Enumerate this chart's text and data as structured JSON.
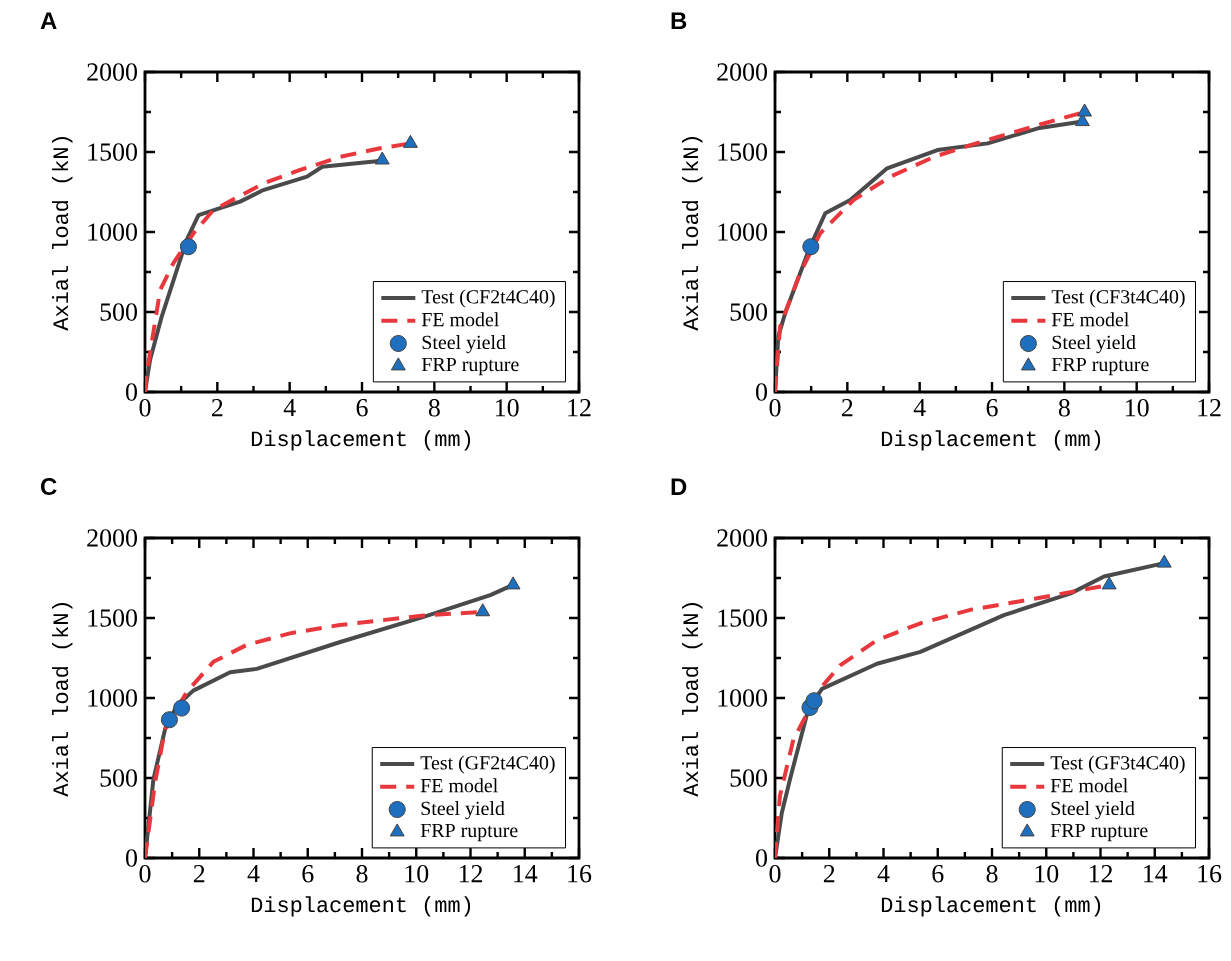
{
  "chart_data": [
    {
      "type": "line",
      "title": "A",
      "xlabel": "Displacement (mm)",
      "ylabel": "Axial load (kN)",
      "xlim": [
        0,
        12
      ],
      "ylim": [
        0,
        2000
      ],
      "xticks": [
        0,
        2,
        4,
        6,
        8,
        10,
        12
      ],
      "yticks": [
        0,
        500,
        1000,
        1500,
        2000
      ],
      "legend": "bottom right",
      "series": [
        {
          "name": "Test (CF2t4C40)",
          "type": "line",
          "color": "#4a4a4a",
          "line_style": "solid",
          "marker": "none",
          "x": [
            0,
            0.14,
            0.46,
            1.15,
            1.48,
            2.63,
            3.27,
            4.48,
            4.9,
            6.33,
            6.56
          ],
          "values": [
            0,
            200,
            470,
            950,
            1106,
            1190,
            1262,
            1346,
            1408,
            1440,
            1450
          ]
        },
        {
          "name": "FE model",
          "type": "line",
          "color": "#e8383d",
          "line_style": "dashed",
          "marker": "none",
          "x": [
            0,
            0.05,
            0.42,
            0.78,
            1.34,
            1.89,
            3.28,
            4.29,
            5.4,
            6.5,
            7.34
          ],
          "values": [
            0,
            118,
            637,
            804,
            992,
            1137,
            1304,
            1388,
            1470,
            1523,
            1554
          ]
        },
        {
          "name": "Steel yield",
          "type": "scatter",
          "color": "#1f6fbf",
          "marker": "circle",
          "x": [
            1.2
          ],
          "values": [
            908
          ]
        },
        {
          "name": "FRP rupture",
          "type": "scatter",
          "color": "#1f6fbf",
          "marker": "triangle",
          "x": [
            6.56,
            7.34
          ],
          "values": [
            1450,
            1554
          ]
        }
      ]
    },
    {
      "type": "line",
      "title": "B",
      "xlabel": "Displacement (mm)",
      "ylabel": "Axial load (kN)",
      "xlim": [
        0,
        12
      ],
      "ylim": [
        0,
        2000
      ],
      "xticks": [
        0,
        2,
        4,
        6,
        8,
        10,
        12
      ],
      "yticks": [
        0,
        500,
        1000,
        1500,
        2000
      ],
      "legend": "bottom right",
      "series": [
        {
          "name": "Test (CF3t4C40)",
          "type": "line",
          "color": "#4a4a4a",
          "line_style": "solid",
          "marker": "none",
          "x": [
            0,
            0.09,
            0.28,
            0.97,
            1.39,
            2.08,
            3.1,
            4.49,
            5.88,
            7.27,
            8.5
          ],
          "values": [
            0,
            346,
            492,
            908,
            1117,
            1200,
            1398,
            1512,
            1554,
            1648,
            1690
          ]
        },
        {
          "name": "FE model",
          "type": "line",
          "color": "#e8383d",
          "line_style": "dashed",
          "marker": "none",
          "x": [
            0,
            0.14,
            0.69,
            1.25,
            2.17,
            3.19,
            4.4,
            5.42,
            7.27,
            8.56
          ],
          "values": [
            0,
            408,
            742,
            992,
            1200,
            1346,
            1470,
            1544,
            1668,
            1750
          ]
        },
        {
          "name": "Steel yield",
          "type": "scatter",
          "color": "#1f6fbf",
          "marker": "circle",
          "x": [
            0.99
          ],
          "values": [
            908
          ]
        },
        {
          "name": "FRP rupture",
          "type": "scatter",
          "color": "#1f6fbf",
          "marker": "triangle",
          "x": [
            8.5,
            8.56
          ],
          "values": [
            1690,
            1750
          ]
        }
      ]
    },
    {
      "type": "line",
      "title": "C",
      "xlabel": "Displacement (mm)",
      "ylabel": "Axial load (kN)",
      "xlim": [
        0,
        16
      ],
      "ylim": [
        0,
        2000
      ],
      "xticks": [
        0,
        2,
        4,
        6,
        8,
        10,
        12,
        14,
        16
      ],
      "yticks": [
        0,
        500,
        1000,
        1500,
        2000
      ],
      "legend": "bottom right",
      "series": [
        {
          "name": "Test (GF2t4C40)",
          "type": "line",
          "color": "#4a4a4a",
          "line_style": "solid",
          "marker": "none",
          "x": [
            0,
            0.31,
            0.74,
            1.17,
            1.78,
            3.14,
            4.12,
            7.2,
            10.27,
            12.73,
            13.57
          ],
          "values": [
            0,
            491,
            805,
            951,
            1046,
            1161,
            1182,
            1350,
            1507,
            1643,
            1707
          ]
        },
        {
          "name": "FE model",
          "type": "line",
          "color": "#e8383d",
          "line_style": "dashed",
          "marker": "none",
          "x": [
            0,
            0.37,
            0.74,
            1.54,
            2.52,
            3.74,
            5.34,
            7.18,
            10.26,
            12.45
          ],
          "values": [
            0,
            470,
            805,
            1038,
            1226,
            1331,
            1404,
            1456,
            1515,
            1539
          ]
        },
        {
          "name": "Steel yield",
          "type": "scatter",
          "color": "#1f6fbf",
          "marker": "circle",
          "x": [
            0.9,
            1.35
          ],
          "values": [
            864,
            937
          ]
        },
        {
          "name": "FRP rupture",
          "type": "scatter",
          "color": "#1f6fbf",
          "marker": "triangle",
          "x": [
            12.45,
            13.57
          ],
          "values": [
            1539,
            1707
          ]
        }
      ]
    },
    {
      "type": "line",
      "title": "D",
      "xlabel": "Displacement (mm)",
      "ylabel": "Axial load (kN)",
      "xlim": [
        0,
        16
      ],
      "ylim": [
        0,
        2000
      ],
      "xticks": [
        0,
        2,
        4,
        6,
        8,
        10,
        12,
        14,
        16
      ],
      "yticks": [
        0,
        500,
        1000,
        1500,
        2000
      ],
      "legend": "bottom right",
      "series": [
        {
          "name": "Test (GF3t4C40)",
          "type": "line",
          "color": "#4a4a4a",
          "line_style": "solid",
          "marker": "none",
          "x": [
            0,
            0.25,
            0.55,
            1.23,
            1.73,
            3.76,
            5.36,
            8.44,
            10.9,
            12.13,
            14.35
          ],
          "values": [
            0,
            281,
            491,
            931,
            1057,
            1214,
            1288,
            1518,
            1654,
            1759,
            1843
          ]
        },
        {
          "name": "FE model",
          "type": "line",
          "color": "#e8383d",
          "line_style": "dashed",
          "marker": "none",
          "x": [
            0,
            0.18,
            0.68,
            1.7,
            2.4,
            3.76,
            5.36,
            7.2,
            9.67,
            12.32
          ],
          "values": [
            0,
            387,
            742,
            1065,
            1204,
            1362,
            1467,
            1551,
            1623,
            1707
          ]
        },
        {
          "name": "Steel yield",
          "type": "scatter",
          "color": "#1f6fbf",
          "marker": "circle",
          "x": [
            1.29,
            1.44
          ],
          "values": [
            941,
            983
          ]
        },
        {
          "name": "FRP rupture",
          "type": "scatter",
          "color": "#1f6fbf",
          "marker": "triangle",
          "x": [
            12.32,
            14.35
          ],
          "values": [
            1707,
            1843
          ]
        }
      ]
    }
  ]
}
